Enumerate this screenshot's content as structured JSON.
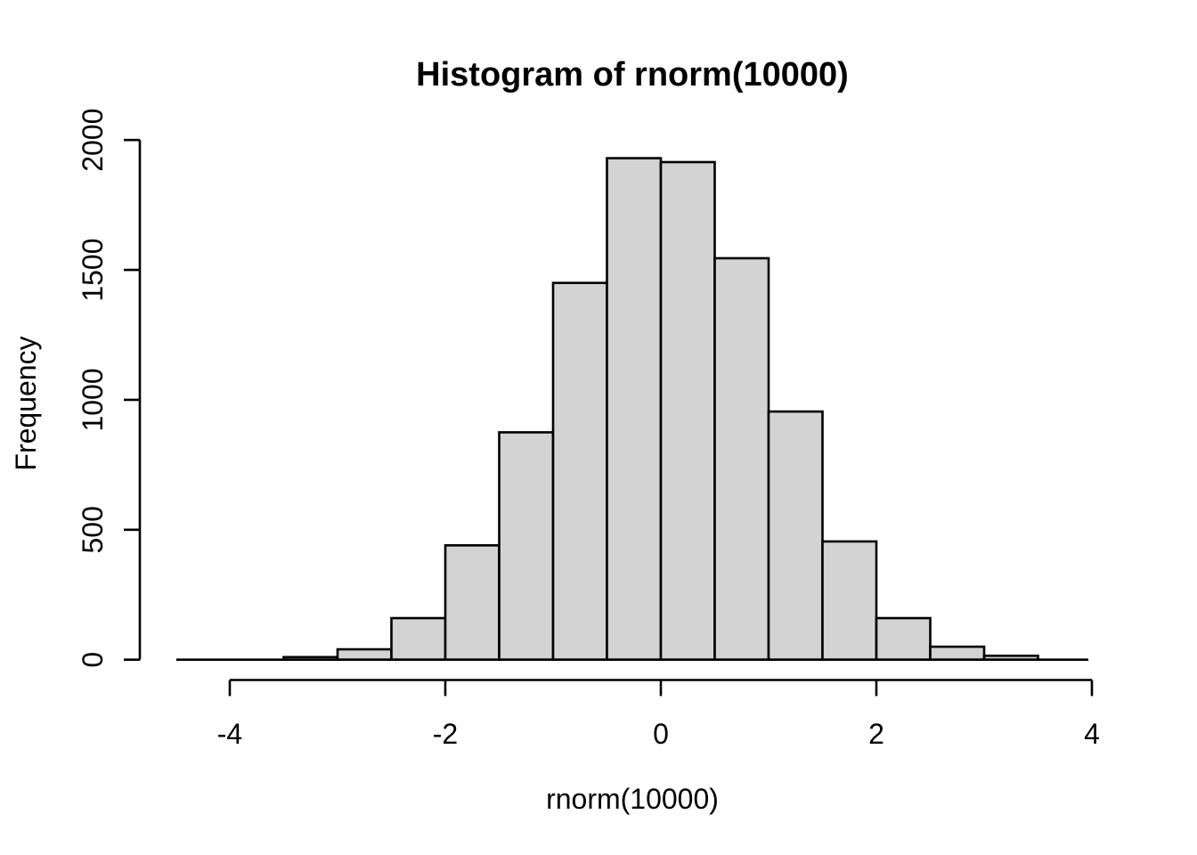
{
  "chart_data": {
    "type": "bar",
    "subtype": "histogram",
    "title": "Histogram of rnorm(10000)",
    "xlabel": "rnorm(10000)",
    "ylabel": "Frequency",
    "breaks": [
      -3.5,
      -3,
      -2.5,
      -2,
      -1.5,
      -1,
      -0.5,
      0,
      0.5,
      1,
      1.5,
      2,
      2.5,
      3,
      3.5
    ],
    "counts": [
      10,
      40,
      160,
      440,
      875,
      1450,
      1930,
      1915,
      1545,
      955,
      455,
      160,
      50,
      15
    ],
    "total_n": 10000,
    "x_ticks": [
      -4,
      -2,
      0,
      2,
      4
    ],
    "y_ticks": [
      0,
      500,
      1000,
      1500,
      2000
    ],
    "xlim": [
      -4,
      4
    ],
    "ylim": [
      0,
      2000
    ],
    "grid": false,
    "legend": "none",
    "bar_fill": "#d3d3d3",
    "bar_stroke": "#000000",
    "axis_color": "#000000",
    "text_color": "#000000",
    "background": "#ffffff"
  }
}
